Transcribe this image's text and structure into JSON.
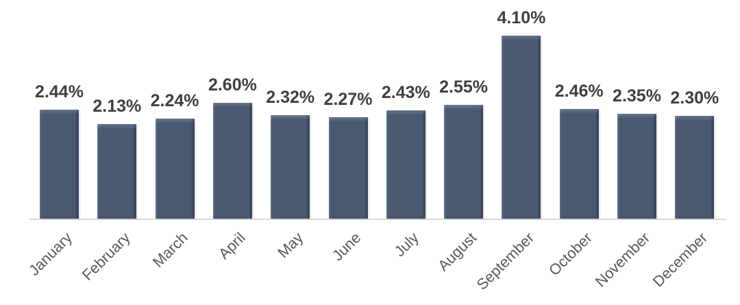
{
  "chart_data": {
    "type": "bar",
    "title": "",
    "xlabel": "",
    "ylabel": "",
    "categories": [
      "January",
      "February",
      "March",
      "April",
      "May",
      "June",
      "July",
      "August",
      "September",
      "October",
      "November",
      "December"
    ],
    "values": [
      2.44,
      2.13,
      2.24,
      2.6,
      2.32,
      2.27,
      2.43,
      2.55,
      4.1,
      2.46,
      2.35,
      2.3
    ],
    "value_labels": [
      "2.44%",
      "2.13%",
      "2.24%",
      "2.60%",
      "2.32%",
      "2.27%",
      "2.43%",
      "2.55%",
      "4.10%",
      "2.46%",
      "2.35%",
      "2.30%"
    ],
    "series_name": "",
    "ylim": [
      0,
      4.4
    ],
    "grid": false,
    "legend": "none",
    "x_tick_rotation": -45,
    "data_labels": "above-bars",
    "colors": {
      "bar_fill": "#4a5970",
      "bar_top_bevel": "#72809a",
      "bar_edge_shadow": "#39465a",
      "value_label": "#3f3f3f",
      "month_label": "#595959",
      "axis_line": "#d9d9d9",
      "background": "#ffffff"
    }
  }
}
